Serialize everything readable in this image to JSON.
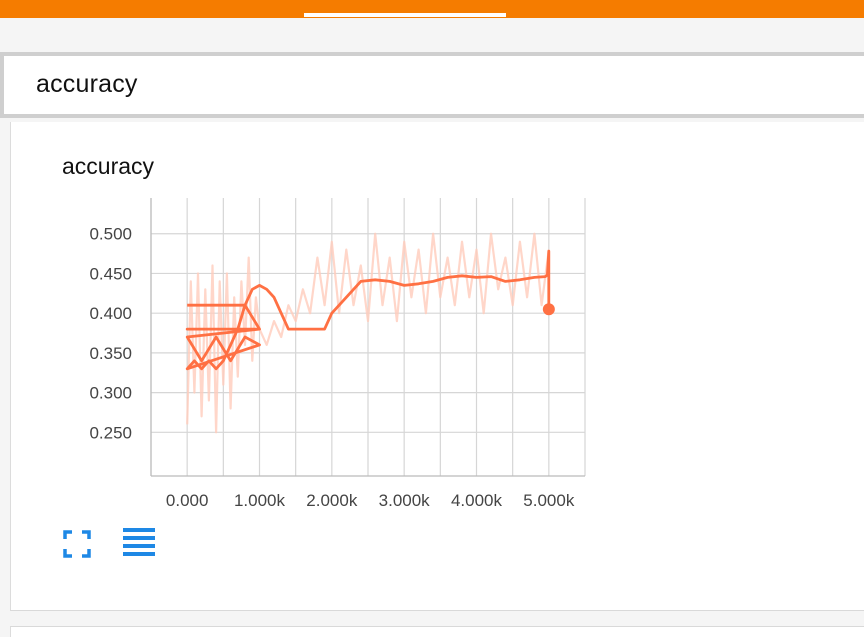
{
  "section": {
    "title": "accuracy"
  },
  "card": {
    "title": "accuracy"
  },
  "icons": {
    "expand": "fullscreen-icon",
    "data_table": "data-table-icon"
  },
  "colors": {
    "topbar": "#f57c00",
    "series_smoothed": "#ff7043",
    "series_raw": "#ffccbc",
    "icon_blue": "#1e88e5"
  },
  "chart_data": {
    "type": "line",
    "title": "accuracy",
    "xlabel": "",
    "ylabel": "",
    "xlim": [
      -500,
      5500
    ],
    "ylim": [
      0.195,
      0.545
    ],
    "x_ticks": [
      "0.000",
      "1.000k",
      "2.000k",
      "3.000k",
      "4.000k",
      "5.000k"
    ],
    "y_ticks": [
      "0.500",
      "0.450",
      "0.400",
      "0.350",
      "0.300",
      "0.250"
    ],
    "grid": true,
    "legend": "none",
    "series": [
      {
        "role": "raw",
        "x": [
          0,
          50,
          100,
          150,
          200,
          250,
          300,
          350,
          400,
          450,
          500,
          550,
          600,
          650,
          700,
          750,
          800,
          850,
          900,
          950,
          1000,
          1100,
          1200,
          1300,
          1400,
          1500,
          1600,
          1700,
          1800,
          1900,
          2000,
          2100,
          2200,
          2300,
          2400,
          2500,
          2600,
          2700,
          2800,
          2900,
          3000,
          3100,
          3200,
          3300,
          3400,
          3500,
          3600,
          3700,
          3800,
          3900,
          4000,
          4100,
          4200,
          4300,
          4400,
          4500,
          4600,
          4700,
          4800,
          4900,
          5000
        ],
        "values": [
          0.26,
          0.44,
          0.3,
          0.45,
          0.27,
          0.43,
          0.29,
          0.46,
          0.25,
          0.44,
          0.31,
          0.45,
          0.28,
          0.42,
          0.32,
          0.44,
          0.36,
          0.47,
          0.34,
          0.42,
          0.38,
          0.36,
          0.39,
          0.37,
          0.41,
          0.39,
          0.43,
          0.4,
          0.47,
          0.41,
          0.49,
          0.4,
          0.48,
          0.41,
          0.46,
          0.39,
          0.5,
          0.41,
          0.47,
          0.39,
          0.49,
          0.42,
          0.48,
          0.4,
          0.5,
          0.42,
          0.47,
          0.41,
          0.49,
          0.42,
          0.48,
          0.4,
          0.5,
          0.43,
          0.47,
          0.41,
          0.49,
          0.42,
          0.5,
          0.41,
          0.48
        ]
      },
      {
        "role": "smoothed",
        "x": [
          0,
          200,
          400,
          600,
          800,
          1000,
          0,
          200,
          400,
          600,
          800,
          1000,
          0,
          200,
          400,
          600,
          800,
          1000,
          0,
          100,
          200,
          300,
          400,
          500,
          600,
          700,
          800,
          900,
          1000,
          1100,
          1200,
          1300,
          1400,
          1500,
          1600,
          1700,
          1800,
          1900,
          2000,
          2200,
          2400,
          2600,
          2800,
          3000,
          3200,
          3400,
          3600,
          3800,
          4000,
          4200,
          4400,
          4600,
          4800,
          4950,
          4980,
          5000,
          5000
        ],
        "values": [
          0.41,
          0.41,
          0.41,
          0.41,
          0.41,
          0.38,
          0.38,
          0.38,
          0.38,
          0.38,
          0.38,
          0.38,
          0.37,
          0.34,
          0.37,
          0.34,
          0.37,
          0.36,
          0.33,
          0.34,
          0.33,
          0.34,
          0.33,
          0.34,
          0.36,
          0.38,
          0.41,
          0.43,
          0.435,
          0.43,
          0.42,
          0.4,
          0.38,
          0.38,
          0.38,
          0.38,
          0.38,
          0.38,
          0.4,
          0.42,
          0.44,
          0.442,
          0.44,
          0.435,
          0.437,
          0.44,
          0.445,
          0.447,
          0.445,
          0.446,
          0.44,
          0.442,
          0.445,
          0.446,
          0.448,
          0.478,
          0.405
        ]
      }
    ]
  }
}
